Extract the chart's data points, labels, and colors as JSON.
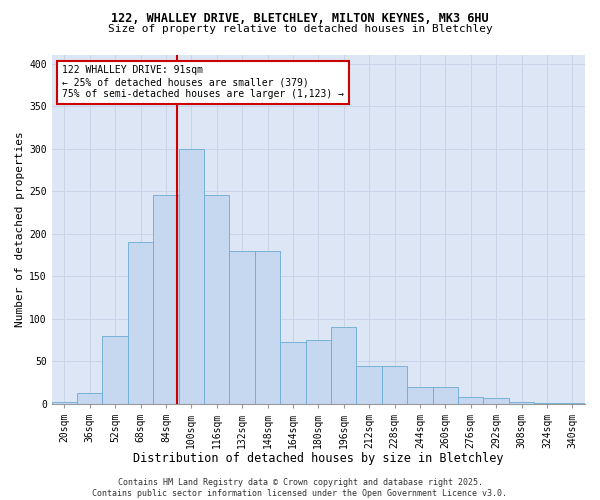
{
  "title_line1": "122, WHALLEY DRIVE, BLETCHLEY, MILTON KEYNES, MK3 6HU",
  "title_line2": "Size of property relative to detached houses in Bletchley",
  "xlabel": "Distribution of detached houses by size in Bletchley",
  "ylabel": "Number of detached properties",
  "footer": "Contains HM Land Registry data © Crown copyright and database right 2025.\nContains public sector information licensed under the Open Government Licence v3.0.",
  "bin_labels": [
    "20sqm",
    "36sqm",
    "52sqm",
    "68sqm",
    "84sqm",
    "100sqm",
    "116sqm",
    "132sqm",
    "148sqm",
    "164sqm",
    "180sqm",
    "196sqm",
    "212sqm",
    "228sqm",
    "244sqm",
    "260sqm",
    "276sqm",
    "292sqm",
    "308sqm",
    "324sqm",
    "340sqm"
  ],
  "bar_values": [
    2,
    12,
    80,
    190,
    245,
    300,
    245,
    180,
    180,
    72,
    75,
    90,
    44,
    44,
    20,
    20,
    8,
    6,
    2,
    1,
    1
  ],
  "bar_color": "#c5d8f0",
  "bar_edge_color": "#6aaad4",
  "grid_color": "#c8d4e8",
  "background_color": "#dce6f5",
  "vline_x": 4.44,
  "vline_color": "#cc0000",
  "annotation_text": "122 WHALLEY DRIVE: 91sqm\n← 25% of detached houses are smaller (379)\n75% of semi-detached houses are larger (1,123) →",
  "annotation_box_color": "#cc0000",
  "ylim": [
    0,
    410
  ],
  "yticks": [
    0,
    50,
    100,
    150,
    200,
    250,
    300,
    350,
    400
  ],
  "title1_fontsize": 8.5,
  "title2_fontsize": 8.0,
  "tick_fontsize": 7.0,
  "ylabel_fontsize": 8.0,
  "xlabel_fontsize": 8.5,
  "annot_fontsize": 7.0,
  "footer_fontsize": 6.0
}
